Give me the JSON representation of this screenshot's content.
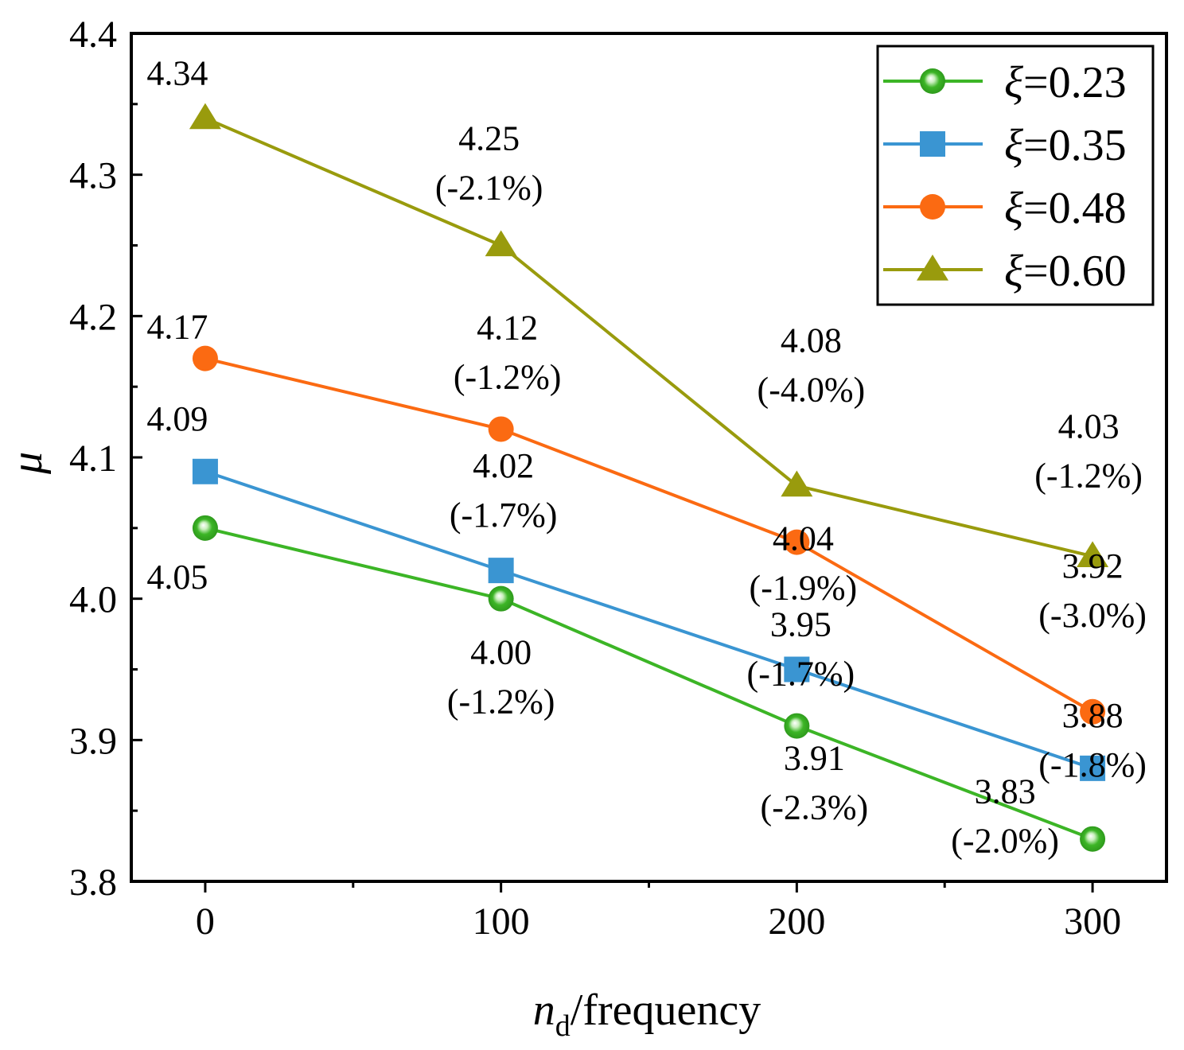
{
  "chart_data": {
    "type": "line",
    "xlabel": {
      "italic": "n",
      "subscript": "d",
      "rest": "/frequency"
    },
    "ylabel": "μ",
    "x": [
      0,
      100,
      200,
      300
    ],
    "xticks": [
      "0",
      "100",
      "200",
      "300"
    ],
    "xlim": [
      -25,
      325
    ],
    "ylim": [
      3.8,
      4.4
    ],
    "yticks": [
      "3.8",
      "3.9",
      "4.0",
      "4.1",
      "4.2",
      "4.3",
      "4.4"
    ],
    "legend_position": "top-right",
    "series": [
      {
        "name": "ξ=0.23",
        "symbol": "ξ",
        "value_text": "=0.23",
        "color": "#3cb526",
        "marker": "circle-glossy",
        "values": [
          4.05,
          4.0,
          3.91,
          3.83
        ],
        "labels": [
          "4.05",
          "4.00",
          "3.91",
          "3.83"
        ],
        "changes": [
          "",
          "(-1.2%)",
          "(-2.3%)",
          "(-2.0%)"
        ]
      },
      {
        "name": "ξ=0.35",
        "symbol": "ξ",
        "value_text": "=0.35",
        "color": "#3a95d2",
        "marker": "square",
        "values": [
          4.09,
          4.02,
          3.95,
          3.88
        ],
        "labels": [
          "4.09",
          "4.02",
          "3.95",
          "3.88"
        ],
        "changes": [
          "",
          "(-1.7%)",
          "(-1.7%)",
          "(-1.8%)"
        ]
      },
      {
        "name": "ξ=0.48",
        "symbol": "ξ",
        "value_text": "=0.48",
        "color": "#fb6a12",
        "marker": "circle",
        "values": [
          4.17,
          4.12,
          4.04,
          3.92
        ],
        "labels": [
          "4.17",
          "4.12",
          "4.04",
          "3.92"
        ],
        "changes": [
          "",
          "(-1.2%)",
          "(-1.9%)",
          "(-3.0%)"
        ]
      },
      {
        "name": "ξ=0.60",
        "symbol": "ξ",
        "value_text": "=0.60",
        "color": "#999b0d",
        "marker": "triangle",
        "values": [
          4.34,
          4.25,
          4.08,
          4.03
        ],
        "labels": [
          "4.34",
          "4.25",
          "4.08",
          "4.03"
        ],
        "changes": [
          "",
          "(-2.1%)",
          "(-4.0%)",
          "(-1.2%)"
        ]
      }
    ]
  }
}
